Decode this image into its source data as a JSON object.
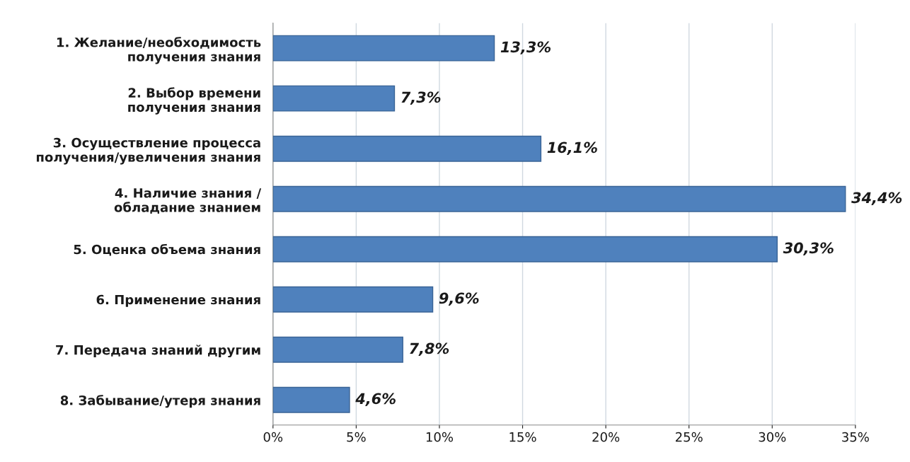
{
  "chart_data": {
    "type": "bar",
    "orientation": "horizontal",
    "categories": [
      "1. Желание/необходимость\nполучения знания",
      "2. Выбор времени\nполучения знания",
      "3. Осуществление процесса\nполучения/увеличения знания",
      "4. Наличие знания /\nобладание знанием",
      "5. Оценка объема знания",
      "6. Применение знания",
      "7. Передача знаний другим",
      "8. Забывание/утеря знания"
    ],
    "values": [
      13.3,
      7.3,
      16.1,
      34.4,
      30.3,
      9.6,
      7.8,
      4.6
    ],
    "value_labels": [
      "13,3%",
      "7,3%",
      "16,1%",
      "34,4%",
      "30,3%",
      "9,6%",
      "7,8%",
      "4,6%"
    ],
    "color": "#4f81bd",
    "xlim": [
      0,
      35
    ],
    "xticks": [
      {
        "value": 0,
        "label": "0%"
      },
      {
        "value": 5,
        "label": "5%"
      },
      {
        "value": 10,
        "label": "10%"
      },
      {
        "value": 15,
        "label": "15%"
      },
      {
        "value": 20,
        "label": "20%"
      },
      {
        "value": 25,
        "label": "25%"
      },
      {
        "value": 30,
        "label": "30%"
      },
      {
        "value": 35,
        "label": "35%"
      }
    ],
    "grid": "x",
    "legend": false
  }
}
